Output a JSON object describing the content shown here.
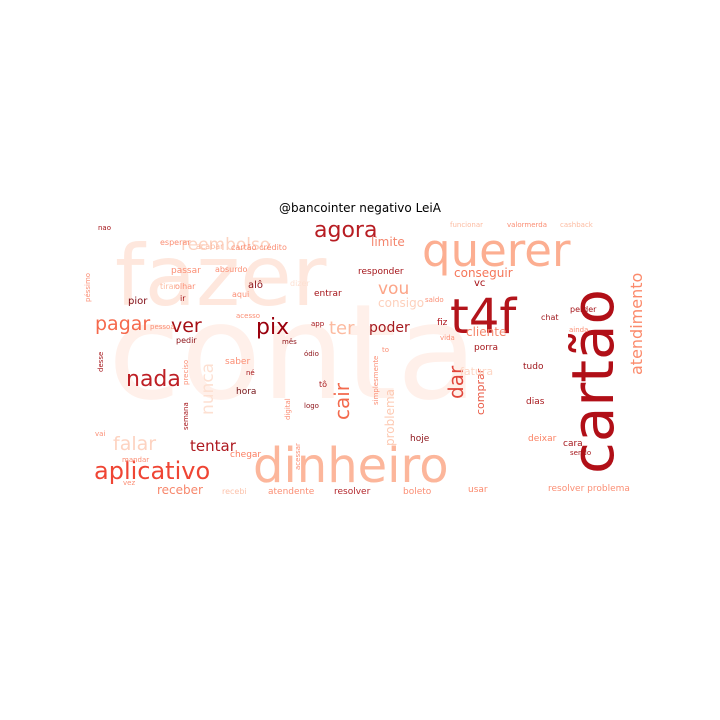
{
  "title": "@bancointer negativo LeiA",
  "palette": {
    "darkest": "#a50f15",
    "dark": "#cb181d",
    "mid": "#ef3b2c",
    "light": "#fb6a4a",
    "lighter": "#fc9272",
    "pale": "#fcbba1",
    "palest": "#fee0d2",
    "faint": "#fff0ea"
  },
  "words": [
    {
      "text": "conta",
      "weight": 1.0,
      "color": "#fff0ea",
      "vertical": false
    },
    {
      "text": "fazer",
      "weight": 0.72,
      "color": "#fee7dd",
      "vertical": false
    },
    {
      "text": "querer",
      "weight": 0.45,
      "color": "#fcae91",
      "vertical": false
    },
    {
      "text": "cartão",
      "weight": 0.48,
      "color": "#b10f17",
      "vertical": true
    },
    {
      "text": "dinheiro",
      "weight": 0.42,
      "color": "#fcb69b",
      "vertical": false
    },
    {
      "text": "t4f",
      "weight": 0.35,
      "color": "#b3141b",
      "vertical": false
    },
    {
      "text": "aplicativo",
      "weight": 0.18,
      "color": "#ef4534",
      "vertical": false
    },
    {
      "text": "agora",
      "weight": 0.17,
      "color": "#b71c22",
      "vertical": false
    },
    {
      "text": "reembolso",
      "weight": 0.15,
      "color": "#fcd3c1",
      "vertical": false
    },
    {
      "text": "nada",
      "weight": 0.15,
      "color": "#be1f25",
      "vertical": false
    },
    {
      "text": "atendimento",
      "weight": 0.14,
      "color": "#fb8a6b",
      "vertical": true
    },
    {
      "text": "pix",
      "weight": 0.15,
      "color": "#99000d",
      "vertical": false
    },
    {
      "text": "ver",
      "weight": 0.13,
      "color": "#a50f15",
      "vertical": false
    },
    {
      "text": "pagar",
      "weight": 0.13,
      "color": "#f5694c",
      "vertical": false
    },
    {
      "text": "falar",
      "weight": 0.13,
      "color": "#fdd3c1",
      "vertical": false
    },
    {
      "text": "dar",
      "weight": 0.13,
      "color": "#e0453a",
      "vertical": true
    },
    {
      "text": "cair",
      "weight": 0.12,
      "color": "#f36a4d",
      "vertical": true
    },
    {
      "text": "ter",
      "weight": 0.13,
      "color": "#fcbba1",
      "vertical": false
    },
    {
      "text": "vou",
      "weight": 0.11,
      "color": "#fca487",
      "vertical": false
    },
    {
      "text": "nunca",
      "weight": 0.1,
      "color": "#fde0d2",
      "vertical": true
    },
    {
      "text": "tentar",
      "weight": 0.1,
      "color": "#ae1a20",
      "vertical": false
    },
    {
      "text": "poder",
      "weight": 0.09,
      "color": "#a51a1f",
      "vertical": false
    },
    {
      "text": "problema",
      "weight": 0.09,
      "color": "#fdcab3",
      "vertical": true
    },
    {
      "text": "comprar",
      "weight": 0.07,
      "color": "#e95a45",
      "vertical": true
    },
    {
      "text": "conseguir",
      "weight": 0.07,
      "color": "#f57659",
      "vertical": false
    },
    {
      "text": "consigo",
      "weight": 0.07,
      "color": "#fdd0bc",
      "vertical": false
    },
    {
      "text": "limite",
      "weight": 0.07,
      "color": "#f4846c",
      "vertical": false
    },
    {
      "text": "fatura",
      "weight": 0.07,
      "color": "#fdd6c4",
      "vertical": false
    },
    {
      "text": "cliente",
      "weight": 0.07,
      "color": "#f4866c",
      "vertical": false
    },
    {
      "text": "receber",
      "weight": 0.07,
      "color": "#f7876c",
      "vertical": false
    },
    {
      "text": "pior",
      "weight": 0.06,
      "color": "#7f0a12",
      "vertical": false
    },
    {
      "text": "alô",
      "weight": 0.05,
      "color": "#8c1016",
      "vertical": false
    },
    {
      "text": "hora",
      "weight": 0.04,
      "color": "#75151a",
      "vertical": false
    },
    {
      "text": "vc",
      "weight": 0.05,
      "color": "#a50f15",
      "vertical": false
    },
    {
      "text": "fiz",
      "weight": 0.05,
      "color": "#b0181f",
      "vertical": false
    },
    {
      "text": "porra",
      "weight": 0.04,
      "color": "#a5151a",
      "vertical": false
    },
    {
      "text": "tudo",
      "weight": 0.04,
      "color": "#9e141a",
      "vertical": false
    },
    {
      "text": "dias",
      "weight": 0.04,
      "color": "#a8191e",
      "vertical": false
    },
    {
      "text": "chat",
      "weight": 0.04,
      "color": "#9d161b",
      "vertical": false
    },
    {
      "text": "hoje",
      "weight": 0.04,
      "color": "#8d1218",
      "vertical": false
    },
    {
      "text": "resolver",
      "weight": 0.04,
      "color": "#b3272c",
      "vertical": false
    },
    {
      "text": "resolver problema",
      "weight": 0.04,
      "color": "#fb8f75",
      "vertical": false
    },
    {
      "text": "boleto",
      "weight": 0.04,
      "color": "#fb8e74",
      "vertical": false
    },
    {
      "text": "usar",
      "weight": 0.04,
      "color": "#fb8a6e",
      "vertical": false
    },
    {
      "text": "atendente",
      "weight": 0.04,
      "color": "#fb8e74",
      "vertical": false
    },
    {
      "text": "recebi",
      "weight": 0.04,
      "color": "#fcc2ab",
      "vertical": false
    },
    {
      "text": "chegar",
      "weight": 0.04,
      "color": "#fb7e61",
      "vertical": false
    },
    {
      "text": "deixar",
      "weight": 0.04,
      "color": "#fb8365",
      "vertical": false
    },
    {
      "text": "entrar",
      "weight": 0.04,
      "color": "#a5151a",
      "vertical": false
    },
    {
      "text": "responder",
      "weight": 0.04,
      "color": "#a5151a",
      "vertical": false
    },
    {
      "text": "saber",
      "weight": 0.04,
      "color": "#fb8e74",
      "vertical": false
    },
    {
      "text": "aqui",
      "weight": 0.04,
      "color": "#fb8e74",
      "vertical": false
    },
    {
      "text": "dizer",
      "weight": 0.04,
      "color": "#fde0d2",
      "vertical": false
    },
    {
      "text": "passar",
      "weight": 0.04,
      "color": "#fb8e74",
      "vertical": false
    },
    {
      "text": "esperar",
      "weight": 0.04,
      "color": "#fb8e74",
      "vertical": false
    },
    {
      "text": "acabar",
      "weight": 0.035,
      "color": "#fcbba1",
      "vertical": false
    },
    {
      "text": "cartão crédito",
      "weight": 0.035,
      "color": "#fb8e74",
      "vertical": false
    },
    {
      "text": "absurdo",
      "weight": 0.035,
      "color": "#fb8e74",
      "vertical": false
    },
    {
      "text": "olhar",
      "weight": 0.035,
      "color": "#fb8e74",
      "vertical": false
    },
    {
      "text": "tirar",
      "weight": 0.035,
      "color": "#fcbba1",
      "vertical": false
    },
    {
      "text": "ir",
      "weight": 0.035,
      "color": "#a5151a",
      "vertical": false
    },
    {
      "text": "pedir",
      "weight": 0.035,
      "color": "#8d1218",
      "vertical": false
    },
    {
      "text": "mês",
      "weight": 0.03,
      "color": "#8d1218",
      "vertical": false
    },
    {
      "text": "ódio",
      "weight": 0.03,
      "color": "#8d1218",
      "vertical": false
    },
    {
      "text": "logo",
      "weight": 0.035,
      "color": "#8d1218",
      "vertical": false
    },
    {
      "text": "funcionar",
      "weight": 0.035,
      "color": "#fcbba1",
      "vertical": false
    },
    {
      "text": "valormerda",
      "weight": 0.035,
      "color": "#fb8e74",
      "vertical": false
    },
    {
      "text": "cashback",
      "weight": 0.035,
      "color": "#fcbba1",
      "vertical": false
    },
    {
      "text": "perder",
      "weight": 0.035,
      "color": "#a5151a",
      "vertical": false
    },
    {
      "text": "ainda",
      "weight": 0.03,
      "color": "#fb8e74",
      "vertical": false
    },
    {
      "text": "cara",
      "weight": 0.035,
      "color": "#a5151a",
      "vertical": false
    },
    {
      "text": "sendo",
      "weight": 0.03,
      "color": "#a5151a",
      "vertical": false
    },
    {
      "text": "app",
      "weight": 0.03,
      "color": "#a5151a",
      "vertical": false
    },
    {
      "text": "vida",
      "weight": 0.03,
      "color": "#fb8e74",
      "vertical": false
    },
    {
      "text": "to",
      "weight": 0.03,
      "color": "#fb8e74",
      "vertical": false
    },
    {
      "text": "tô",
      "weight": 0.03,
      "color": "#a5151a",
      "vertical": false
    },
    {
      "text": "né",
      "weight": 0.03,
      "color": "#a5151a",
      "vertical": false
    },
    {
      "text": "mandar",
      "weight": 0.03,
      "color": "#fb8e74",
      "vertical": false
    },
    {
      "text": "vez",
      "weight": 0.03,
      "color": "#fb8e74",
      "vertical": false
    },
    {
      "text": "nao",
      "weight": 0.03,
      "color": "#a5151a",
      "vertical": false
    },
    {
      "text": "vai",
      "weight": 0.03,
      "color": "#fb8e74",
      "vertical": false
    },
    {
      "text": "acessar",
      "weight": 0.03,
      "color": "#fb8e74",
      "vertical": true
    },
    {
      "text": "digital",
      "weight": 0.03,
      "color": "#fb8e74",
      "vertical": true
    },
    {
      "text": "semana",
      "weight": 0.03,
      "color": "#a5151a",
      "vertical": true
    },
    {
      "text": "preciso",
      "weight": 0.03,
      "color": "#fb8e74",
      "vertical": true
    },
    {
      "text": "desse",
      "weight": 0.03,
      "color": "#a5151a",
      "vertical": true
    },
    {
      "text": "péssimo",
      "weight": 0.03,
      "color": "#fb8e74",
      "vertical": true
    },
    {
      "text": "saldo",
      "weight": 0.03,
      "color": "#fb8e74",
      "vertical": false
    },
    {
      "text": "pessoa",
      "weight": 0.03,
      "color": "#fb8e74",
      "vertical": false
    },
    {
      "text": "acesso",
      "weight": 0.03,
      "color": "#fb8e74",
      "vertical": false
    },
    {
      "text": "simplesmente",
      "weight": 0.025,
      "color": "#fb8e74",
      "vertical": true
    }
  ]
}
